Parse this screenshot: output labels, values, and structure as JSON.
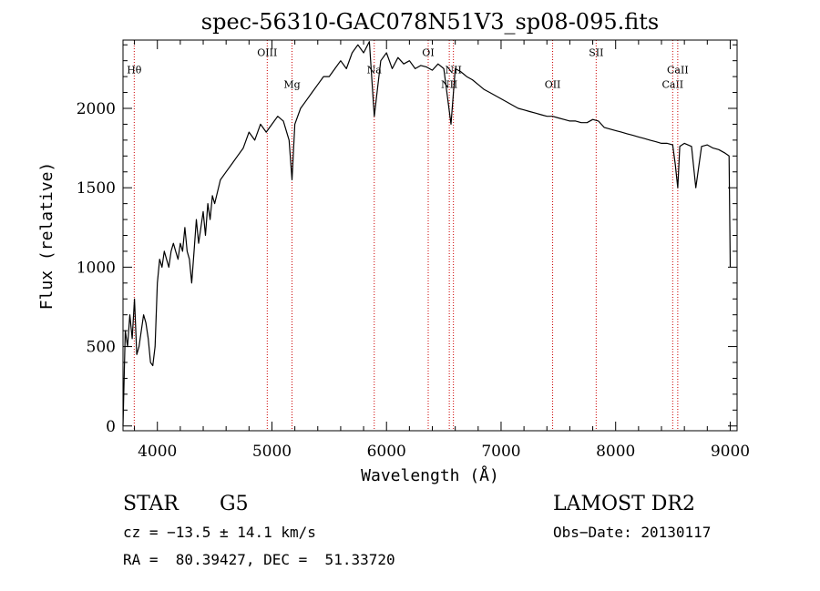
{
  "chart_data": {
    "type": "line",
    "title": "spec-56310-GAC078N51V3_sp08-095.fits",
    "xlabel": "Wavelength (Å)",
    "ylabel": "Flux (relative)",
    "xlim": [
      3700,
      9060
    ],
    "ylim": [
      -30,
      2430
    ],
    "xticks": [
      4000,
      5000,
      6000,
      7000,
      8000,
      9000
    ],
    "yticks": [
      0,
      500,
      1000,
      1500,
      2000
    ],
    "line_color": "#000000",
    "marker_color": "#cc0000",
    "series": [
      {
        "x": [
          3700,
          3720,
          3740,
          3760,
          3780,
          3800,
          3820,
          3840,
          3860,
          3880,
          3900,
          3920,
          3940,
          3960,
          3980,
          4000,
          4020,
          4040,
          4060,
          4080,
          4100,
          4120,
          4140,
          4160,
          4180,
          4200,
          4220,
          4240,
          4260,
          4280,
          4300,
          4320,
          4340,
          4360,
          4380,
          4400,
          4420,
          4440,
          4460,
          4480,
          4500,
          4550,
          4600,
          4650,
          4700,
          4750,
          4800,
          4850,
          4900,
          4950,
          5000,
          5050,
          5100,
          5150,
          5175,
          5200,
          5250,
          5300,
          5350,
          5400,
          5450,
          5500,
          5550,
          5600,
          5650,
          5700,
          5750,
          5800,
          5850,
          5893,
          5950,
          6000,
          6050,
          6100,
          6150,
          6200,
          6250,
          6300,
          6350,
          6400,
          6450,
          6500,
          6563,
          6600,
          6650,
          6700,
          6750,
          6800,
          6850,
          6900,
          6950,
          7000,
          7050,
          7100,
          7150,
          7200,
          7250,
          7300,
          7350,
          7400,
          7450,
          7500,
          7550,
          7600,
          7650,
          7700,
          7750,
          7800,
          7850,
          7900,
          7950,
          8000,
          8050,
          8100,
          8150,
          8200,
          8250,
          8300,
          8350,
          8400,
          8450,
          8498,
          8520,
          8542,
          8560,
          8600,
          8662,
          8700,
          8750,
          8800,
          8850,
          8900,
          8950,
          8990,
          9000
        ],
        "y": [
          0,
          600,
          500,
          700,
          550,
          800,
          450,
          500,
          600,
          700,
          650,
          550,
          400,
          380,
          500,
          900,
          1050,
          1000,
          1100,
          1050,
          1000,
          1100,
          1150,
          1100,
          1050,
          1150,
          1100,
          1250,
          1100,
          1050,
          900,
          1100,
          1300,
          1150,
          1250,
          1350,
          1200,
          1400,
          1300,
          1450,
          1400,
          1550,
          1600,
          1650,
          1700,
          1750,
          1850,
          1800,
          1900,
          1850,
          1900,
          1950,
          1920,
          1800,
          1550,
          1900,
          2000,
          2050,
          2100,
          2150,
          2200,
          2200,
          2250,
          2300,
          2250,
          2350,
          2400,
          2350,
          2420,
          1950,
          2300,
          2350,
          2250,
          2320,
          2280,
          2300,
          2250,
          2270,
          2260,
          2240,
          2280,
          2250,
          1900,
          2250,
          2230,
          2200,
          2180,
          2150,
          2120,
          2100,
          2080,
          2060,
          2040,
          2020,
          2000,
          1990,
          1980,
          1970,
          1960,
          1950,
          1950,
          1940,
          1930,
          1920,
          1920,
          1910,
          1910,
          1930,
          1920,
          1880,
          1870,
          1860,
          1850,
          1840,
          1830,
          1820,
          1810,
          1800,
          1790,
          1780,
          1780,
          1770,
          1650,
          1500,
          1760,
          1780,
          1760,
          1500,
          1760,
          1770,
          1750,
          1740,
          1720,
          1700,
          1000
        ]
      }
    ],
    "lines": [
      {
        "label": "Hθ",
        "x": 3798,
        "label_y": 2220
      },
      {
        "label": "OIII",
        "x": 4959,
        "label_y": 2330
      },
      {
        "label": "Mg",
        "x": 5175,
        "label_y": 2130
      },
      {
        "label": "Na",
        "x": 5893,
        "label_y": 2220
      },
      {
        "label": "OI",
        "x": 6364,
        "label_y": 2330
      },
      {
        "label": "NII",
        "x": 6548,
        "label_y": 2130
      },
      {
        "label": "NII",
        "x": 6584,
        "label_y": 2220
      },
      {
        "label": "OII",
        "x": 7450,
        "label_y": 2130
      },
      {
        "label": "SII",
        "x": 7830,
        "label_y": 2330
      },
      {
        "label": "CaII",
        "x": 8498,
        "label_y": 2130
      },
      {
        "label": "CaII",
        "x": 8542,
        "label_y": 2220
      }
    ]
  },
  "info": {
    "object": "STAR",
    "subclass": "G5",
    "survey": "LAMOST DR2",
    "cz": "cz = −13.5 ± 14.1 km/s",
    "obs_date": "Obs−Date: 20130117",
    "coords": "RA =  80.39427, DEC =  51.33720"
  }
}
